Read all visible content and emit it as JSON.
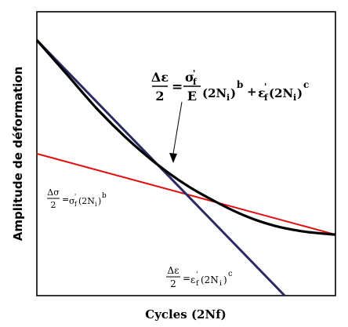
{
  "chart_data": {
    "type": "line",
    "title": "",
    "xlabel": "Cycles (2Nf)",
    "ylabel": "Amplitude de déformation",
    "grid": false,
    "legend": "none",
    "x_scale": "log",
    "y_scale": "log",
    "axis_ticks": "none",
    "series": [
      {
        "key": "total",
        "color": "#000000",
        "x": [
          0.0,
          0.1,
          0.2,
          0.3,
          0.4,
          0.5,
          0.6,
          0.7,
          0.8,
          0.9,
          1.0
        ],
        "values": [
          0.9,
          0.78,
          0.66,
          0.555,
          0.465,
          0.39,
          0.33,
          0.28,
          0.245,
          0.225,
          0.215
        ]
      },
      {
        "key": "elastic",
        "color": "#e01010",
        "x": [
          0.0,
          1.0
        ],
        "values": [
          0.5,
          0.215
        ]
      },
      {
        "key": "plastic",
        "color": "#2a2a60",
        "x": [
          0.0,
          0.83
        ],
        "values": [
          0.9,
          0.0
        ]
      }
    ],
    "annotations": {
      "total": {
        "lhs_num": "Δε",
        "lhs_den": "2",
        "eq": "=",
        "t1_num": "σ",
        "t1_num_sub": "f",
        "t1_num_prime": "'",
        "t1_den": "E",
        "t1_rest": "(2N",
        "t1_rest_sub": "i",
        "t1_close": ")",
        "t1_exp": "b",
        "plus": "+",
        "t2_eps": "ε",
        "t2_prime": "'",
        "t2_sub": "f",
        "t2_rest": "(2N",
        "t2_rest_sub": "i",
        "t2_close": ")",
        "t2_exp": "c"
      },
      "elastic": {
        "lhs_num": "Δσ",
        "lhs_den": "2",
        "eq": "=",
        "sym": "σ",
        "prime": "'",
        "sub": "f",
        "rest": "(2N",
        "rest_sub": "i",
        "close": ")",
        "exp": "b"
      },
      "plastic": {
        "lhs_num": "Δε",
        "lhs_den": "2",
        "eq": "=",
        "sym": "ε",
        "prime": "'",
        "sub": "f",
        "rest": "(2N",
        "rest_sub": "i",
        "close": ")",
        "exp": "c"
      }
    }
  }
}
